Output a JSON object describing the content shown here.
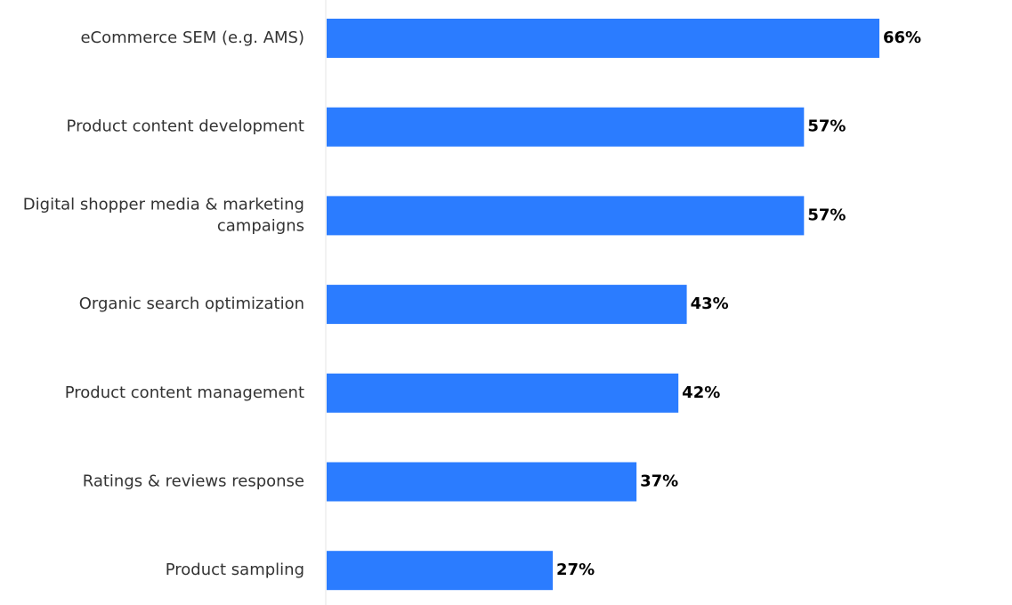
{
  "chart_data": {
    "type": "bar",
    "orientation": "horizontal",
    "categories": [
      [
        "eCommerce SEM (e.g. AMS)"
      ],
      [
        "Product content development"
      ],
      [
        "Digital shopper media & marketing",
        "campaigns"
      ],
      [
        "Organic search optimization"
      ],
      [
        "Product content management"
      ],
      [
        "Ratings & reviews response"
      ],
      [
        "Product sampling"
      ]
    ],
    "values": [
      66,
      57,
      57,
      43,
      42,
      37,
      27
    ],
    "value_labels": [
      "66%",
      "57%",
      "57%",
      "43%",
      "42%",
      "37%",
      "27%"
    ],
    "xlim": [
      0,
      66
    ],
    "grid": false,
    "legend": "none"
  },
  "colors": {
    "bar": "#2b7cff",
    "axis_line": "#e6e6e6",
    "category_text": "#333333",
    "value_text": "#000000"
  }
}
